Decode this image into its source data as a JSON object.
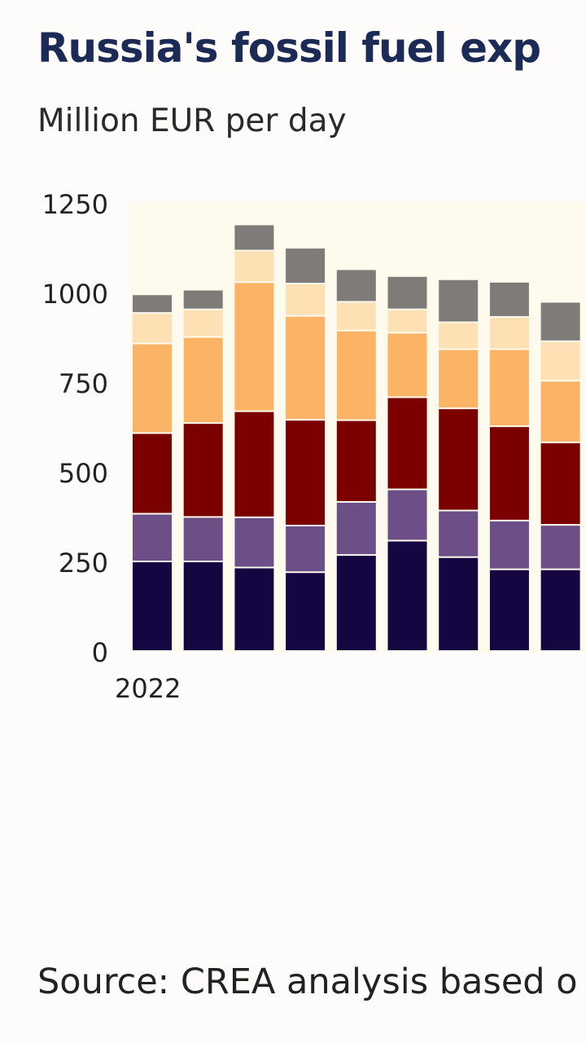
{
  "title": "Russia's fossil fuel exp",
  "subtitle": "Million EUR per day",
  "source": "Source: CREA analysis based o",
  "chart_data": {
    "type": "bar",
    "stacked": true,
    "first_x_label": "2022",
    "yticks": [
      "0",
      "250",
      "500",
      "750",
      "1000",
      "1250"
    ],
    "ylim": [
      0,
      1250
    ],
    "grid": false,
    "legend": "none visible",
    "n_bars": 9,
    "series": [
      {
        "color": "#150642",
        "values": [
          250,
          250,
          233,
          220,
          268,
          308,
          262,
          228,
          228
        ]
      },
      {
        "color": "#6b4f86",
        "values": [
          133,
          124,
          140,
          130,
          148,
          143,
          130,
          136,
          124
        ]
      },
      {
        "color": "#7b0000",
        "values": [
          225,
          262,
          296,
          295,
          228,
          257,
          285,
          263,
          230
        ]
      },
      {
        "color": "#fbb466",
        "values": [
          250,
          240,
          360,
          290,
          250,
          180,
          165,
          215,
          172
        ]
      },
      {
        "color": "#fde0b3",
        "values": [
          85,
          77,
          88,
          90,
          80,
          65,
          75,
          90,
          110
        ]
      },
      {
        "color": "#7f7b78",
        "values": [
          52,
          55,
          73,
          100,
          91,
          93,
          120,
          98,
          110
        ]
      }
    ]
  }
}
